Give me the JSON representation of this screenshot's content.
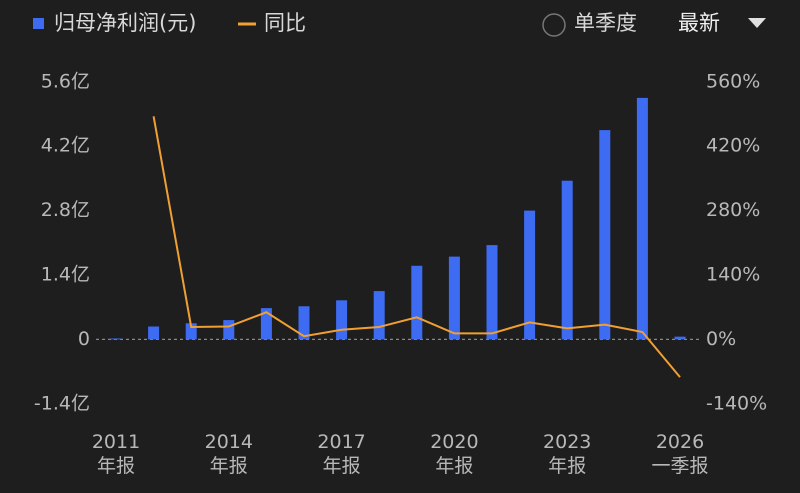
{
  "chart_data": {
    "type": "bar+line",
    "categories": [
      "2011\n年报",
      null,
      null,
      "2014\n年报",
      null,
      null,
      "2017\n年报",
      null,
      null,
      "2020\n年报",
      null,
      null,
      "2023\n年报",
      null,
      null,
      "2026\n一季报"
    ],
    "series": [
      {
        "name": "归母净利润(元)",
        "type": "bar",
        "color": "#3d6bf2",
        "values": [
          0.02,
          0.28,
          0.35,
          0.42,
          0.68,
          0.72,
          0.85,
          1.05,
          1.6,
          1.8,
          2.05,
          2.8,
          3.45,
          4.55,
          5.25,
          0.06
        ]
      },
      {
        "name": "同比",
        "type": "line",
        "axis": "y2",
        "color": "#f0a033",
        "values": [
          null,
          485,
          27,
          28,
          59,
          7,
          21,
          27,
          48,
          13,
          13,
          37,
          24,
          32,
          16,
          -82
        ]
      }
    ],
    "ylim": [
      -1.6,
      5.9
    ],
    "yticks": [
      {
        "value": -1.4,
        "label": "-1.4亿"
      },
      0,
      {
        "value": 1.4,
        "label": "1.4亿"
      },
      {
        "value": 2.8,
        "label": "2.8亿"
      },
      {
        "value": 4.2,
        "label": "4.2亿"
      },
      {
        "value": 5.6,
        "label": "5.6亿"
      }
    ],
    "y2lim": [
      -160,
      590
    ],
    "y2ticks": [
      {
        "value": -140,
        "label": "-140%"
      },
      {
        "value": 0,
        "label": "0%"
      },
      {
        "value": 140,
        "label": "140%"
      },
      {
        "value": 280,
        "label": "280%"
      },
      {
        "value": 420,
        "label": "420%"
      },
      {
        "value": 560,
        "label": "560%"
      }
    ],
    "controls": {
      "period": "单季度",
      "sort": "最新"
    }
  }
}
